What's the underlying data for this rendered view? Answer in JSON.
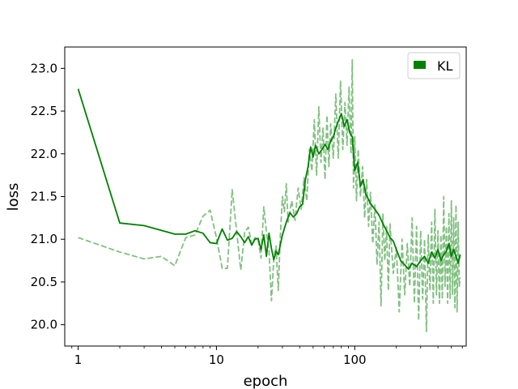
{
  "chart_data": {
    "type": "line",
    "xlabel": "epoch",
    "ylabel": "loss",
    "x_scale": "log",
    "xlim": [
      0.8,
      640
    ],
    "ylim": [
      19.75,
      23.25
    ],
    "x_ticks": [
      {
        "value": 1,
        "label": "1"
      },
      {
        "value": 10,
        "label": "10"
      },
      {
        "value": 100,
        "label": "100"
      }
    ],
    "y_ticks": [
      {
        "value": 20.0,
        "label": "20.0"
      },
      {
        "value": 20.5,
        "label": "20.5"
      },
      {
        "value": 21.0,
        "label": "21.0"
      },
      {
        "value": 21.5,
        "label": "21.5"
      },
      {
        "value": 22.0,
        "label": "22.0"
      },
      {
        "value": 22.5,
        "label": "22.5"
      },
      {
        "value": 23.0,
        "label": "23.0"
      }
    ],
    "grid": false,
    "legend": {
      "position": "top-right",
      "entries": [
        {
          "label": "KL",
          "color": "#008000"
        }
      ]
    },
    "series": [
      {
        "name": "KL",
        "role": "train",
        "color": "#008000",
        "style": "solid",
        "points": [
          [
            1,
            22.76
          ],
          [
            2,
            21.19
          ],
          [
            3,
            21.16
          ],
          [
            5,
            21.06
          ],
          [
            6,
            21.06
          ],
          [
            7,
            21.1
          ],
          [
            8,
            21.07
          ],
          [
            9,
            20.96
          ],
          [
            10,
            20.95
          ],
          [
            11,
            21.12
          ],
          [
            12,
            20.99
          ],
          [
            13,
            21.01
          ],
          [
            14,
            21.09
          ],
          [
            15,
            21.03
          ],
          [
            16,
            20.96
          ],
          [
            17,
            21.03
          ],
          [
            18,
            20.93
          ],
          [
            19,
            21.0
          ],
          [
            20,
            21.01
          ],
          [
            21,
            20.88
          ],
          [
            22,
            21.05
          ],
          [
            23,
            20.8
          ],
          [
            24,
            21.07
          ],
          [
            25,
            20.89
          ],
          [
            26,
            20.76
          ],
          [
            27,
            20.86
          ],
          [
            28,
            20.82
          ],
          [
            30,
            21.05
          ],
          [
            32,
            21.2
          ],
          [
            34,
            21.31
          ],
          [
            36,
            21.26
          ],
          [
            38,
            21.3
          ],
          [
            40,
            21.38
          ],
          [
            42,
            21.41
          ],
          [
            44,
            21.7
          ],
          [
            46,
            21.85
          ],
          [
            48,
            22.08
          ],
          [
            50,
            21.96
          ],
          [
            52,
            22.1
          ],
          [
            55,
            22.0
          ],
          [
            58,
            22.05
          ],
          [
            61,
            22.11
          ],
          [
            64,
            22.05
          ],
          [
            67,
            22.15
          ],
          [
            70,
            22.2
          ],
          [
            73,
            22.3
          ],
          [
            76,
            22.38
          ],
          [
            80,
            22.47
          ],
          [
            84,
            22.32
          ],
          [
            88,
            22.4
          ],
          [
            92,
            22.25
          ],
          [
            96,
            22.2
          ],
          [
            100,
            21.8
          ],
          [
            105,
            21.9
          ],
          [
            110,
            21.62
          ],
          [
            115,
            21.7
          ],
          [
            120,
            21.53
          ],
          [
            130,
            21.42
          ],
          [
            140,
            21.35
          ],
          [
            150,
            21.28
          ],
          [
            160,
            21.18
          ],
          [
            170,
            21.1
          ],
          [
            180,
            21.02
          ],
          [
            190,
            20.98
          ],
          [
            200,
            20.88
          ],
          [
            215,
            20.75
          ],
          [
            230,
            20.7
          ],
          [
            245,
            20.65
          ],
          [
            260,
            20.72
          ],
          [
            280,
            20.68
          ],
          [
            300,
            20.75
          ],
          [
            320,
            20.8
          ],
          [
            340,
            20.72
          ],
          [
            360,
            20.85
          ],
          [
            380,
            20.78
          ],
          [
            400,
            20.88
          ],
          [
            420,
            20.75
          ],
          [
            440,
            20.82
          ],
          [
            460,
            20.86
          ],
          [
            480,
            20.95
          ],
          [
            500,
            20.8
          ],
          [
            520,
            20.88
          ],
          [
            540,
            20.8
          ],
          [
            560,
            20.72
          ],
          [
            580,
            20.82
          ]
        ]
      },
      {
        "name": "KL",
        "role": "validation",
        "color": "#80c080",
        "style": "dashed",
        "points": [
          [
            1,
            21.02
          ],
          [
            2,
            20.85
          ],
          [
            3,
            20.77
          ],
          [
            4,
            20.8
          ],
          [
            5,
            20.69
          ],
          [
            6,
            21.02
          ],
          [
            7,
            21.05
          ],
          [
            8,
            21.27
          ],
          [
            9,
            21.34
          ],
          [
            10,
            21.02
          ],
          [
            11,
            20.66
          ],
          [
            12,
            20.66
          ],
          [
            13,
            21.58
          ],
          [
            14,
            21.09
          ],
          [
            15,
            20.64
          ],
          [
            16,
            21.08
          ],
          [
            17,
            21.14
          ],
          [
            18,
            20.94
          ],
          [
            19,
            21.02
          ],
          [
            20,
            21.0
          ],
          [
            21,
            20.78
          ],
          [
            22,
            21.38
          ],
          [
            23,
            21.08
          ],
          [
            24,
            20.87
          ],
          [
            25,
            20.28
          ],
          [
            26,
            20.78
          ],
          [
            27,
            20.92
          ],
          [
            28,
            20.4
          ],
          [
            29,
            21.05
          ],
          [
            30,
            21.5
          ],
          [
            31,
            21.32
          ],
          [
            32,
            21.65
          ],
          [
            33,
            21.2
          ],
          [
            35,
            21.45
          ],
          [
            37,
            21.22
          ],
          [
            39,
            21.6
          ],
          [
            41,
            21.35
          ],
          [
            43,
            21.72
          ],
          [
            45,
            21.45
          ],
          [
            47,
            22.05
          ],
          [
            49,
            21.8
          ],
          [
            51,
            22.4
          ],
          [
            53,
            21.75
          ],
          [
            55,
            22.55
          ],
          [
            57,
            21.9
          ],
          [
            59,
            22.3
          ],
          [
            61,
            21.7
          ],
          [
            63,
            22.45
          ],
          [
            65,
            21.85
          ],
          [
            67,
            22.35
          ],
          [
            70,
            21.95
          ],
          [
            73,
            22.7
          ],
          [
            76,
            21.95
          ],
          [
            79,
            22.85
          ],
          [
            82,
            22.05
          ],
          [
            85,
            22.6
          ],
          [
            88,
            22.1
          ],
          [
            91,
            22.78
          ],
          [
            94,
            22.0
          ],
          [
            96,
            23.1
          ],
          [
            98,
            21.6
          ],
          [
            100,
            22.2
          ],
          [
            103,
            21.45
          ],
          [
            106,
            22.05
          ],
          [
            110,
            21.5
          ],
          [
            114,
            21.85
          ],
          [
            118,
            21.25
          ],
          [
            122,
            21.7
          ],
          [
            126,
            21.15
          ],
          [
            130,
            21.55
          ],
          [
            135,
            20.95
          ],
          [
            140,
            21.4
          ],
          [
            145,
            20.7
          ],
          [
            150,
            21.2
          ],
          [
            155,
            20.22
          ],
          [
            160,
            21.3
          ],
          [
            165,
            20.75
          ],
          [
            170,
            21.15
          ],
          [
            175,
            20.4
          ],
          [
            180,
            21.18
          ],
          [
            190,
            20.6
          ],
          [
            200,
            20.9
          ],
          [
            210,
            20.15
          ],
          [
            220,
            21.0
          ],
          [
            230,
            20.35
          ],
          [
            240,
            20.95
          ],
          [
            250,
            20.45
          ],
          [
            260,
            21.25
          ],
          [
            270,
            20.25
          ],
          [
            280,
            21.15
          ],
          [
            290,
            20.05
          ],
          [
            300,
            21.1
          ],
          [
            310,
            20.3
          ],
          [
            320,
            21.0
          ],
          [
            330,
            19.92
          ],
          [
            340,
            21.05
          ],
          [
            350,
            20.4
          ],
          [
            360,
            21.2
          ],
          [
            370,
            20.25
          ],
          [
            380,
            21.35
          ],
          [
            390,
            20.35
          ],
          [
            400,
            21.1
          ],
          [
            410,
            20.25
          ],
          [
            420,
            21.05
          ],
          [
            430,
            20.3
          ],
          [
            440,
            21.5
          ],
          [
            450,
            20.45
          ],
          [
            460,
            21.15
          ],
          [
            470,
            20.25
          ],
          [
            480,
            21.3
          ],
          [
            490,
            20.3
          ],
          [
            500,
            21.45
          ],
          [
            510,
            20.35
          ],
          [
            520,
            21.25
          ],
          [
            530,
            20.2
          ],
          [
            540,
            21.4
          ],
          [
            550,
            20.15
          ],
          [
            560,
            21.2
          ],
          [
            570,
            20.45
          ],
          [
            580,
            20.55
          ]
        ]
      }
    ]
  }
}
